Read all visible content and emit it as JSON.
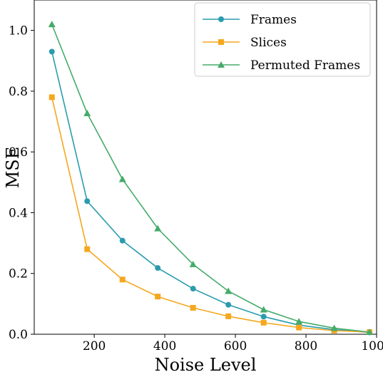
{
  "chart_data": {
    "type": "line",
    "xlabel": "Noise Level",
    "ylabel": "MSE",
    "xlim": [
      30,
      1000
    ],
    "ylim": [
      0.0,
      1.1
    ],
    "xticks": [
      200,
      400,
      600,
      800,
      1000
    ],
    "yticks": [
      0.0,
      0.2,
      0.4,
      0.6,
      0.8,
      1.0
    ],
    "xtick_labels": [
      "200",
      "400",
      "600",
      "800",
      "1000"
    ],
    "ytick_labels": [
      "0.0",
      "0.2",
      "0.4",
      "0.6",
      "0.8",
      "1.0"
    ],
    "grid": false,
    "legend_position": "top-right",
    "x": [
      80,
      180,
      280,
      380,
      480,
      580,
      680,
      780,
      880,
      980
    ],
    "series": [
      {
        "name": "Frames",
        "color": "#2a9cae",
        "marker": "circle",
        "values": [
          0.93,
          0.438,
          0.308,
          0.218,
          0.15,
          0.097,
          0.058,
          0.03,
          0.015,
          0.006
        ]
      },
      {
        "name": "Slices",
        "color": "#f5a71e",
        "marker": "square",
        "values": [
          0.78,
          0.28,
          0.18,
          0.124,
          0.087,
          0.059,
          0.038,
          0.022,
          0.012,
          0.007
        ]
      },
      {
        "name": "Permuted Frames",
        "color": "#45ab6a",
        "marker": "triangle",
        "values": [
          1.02,
          0.727,
          0.51,
          0.348,
          0.23,
          0.142,
          0.081,
          0.042,
          0.02,
          0.007
        ]
      }
    ]
  }
}
